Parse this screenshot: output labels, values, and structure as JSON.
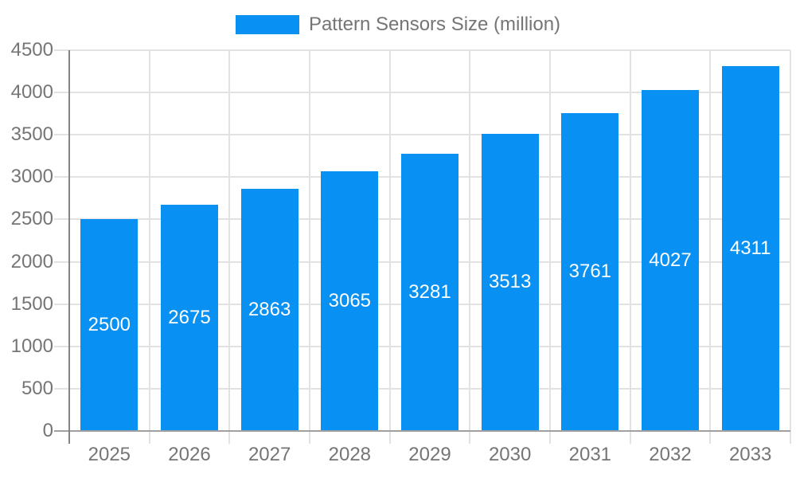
{
  "legend": {
    "label": "Pattern Sensors Size (million)"
  },
  "style": {
    "bar_color": "#0890F2",
    "grid_color": "#E2E2E2",
    "y_axis_color": "#848484",
    "x_axis_color": "#A0A0A0",
    "tick_text_color": "#757575",
    "value_text_color": "#FFFFFF",
    "background": "#FFFFFF"
  },
  "chart_data": {
    "type": "bar",
    "title": "Pattern Sensors Size (million)",
    "categories": [
      "2025",
      "2026",
      "2027",
      "2028",
      "2029",
      "2030",
      "2031",
      "2032",
      "2033"
    ],
    "values": [
      2500,
      2675,
      2863,
      3065,
      3281,
      3513,
      3761,
      4027,
      4311
    ],
    "xlabel": "",
    "ylabel": "",
    "ylim": [
      0,
      4500
    ],
    "yticks": [
      0,
      500,
      1000,
      1500,
      2000,
      2500,
      3000,
      3500,
      4000,
      4500
    ],
    "legend_entries": [
      "Pattern Sensors Size (million)"
    ],
    "legend_position": "top-center",
    "grid": true,
    "value_labels": "inside-center-white"
  }
}
